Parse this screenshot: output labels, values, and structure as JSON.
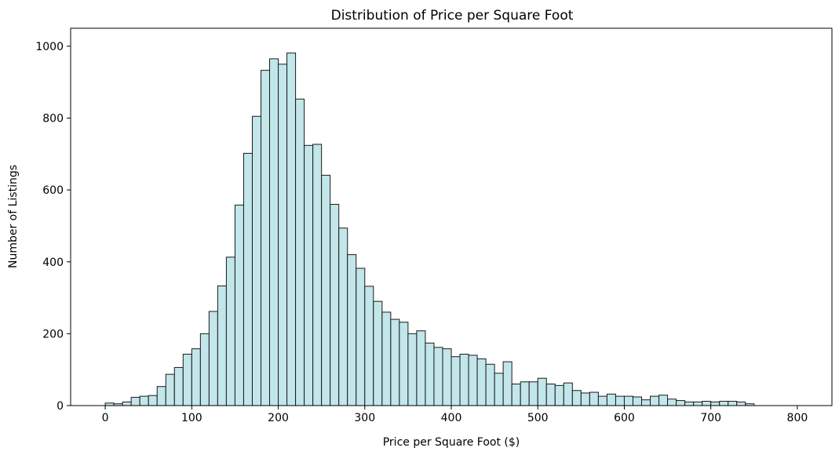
{
  "chart_data": {
    "type": "bar",
    "title": "Distribution of Price per Square Foot",
    "xlabel": "Price per Square Foot ($)",
    "ylabel": "Number of Listings",
    "xlim": [
      -40,
      840
    ],
    "ylim": [
      0,
      1050
    ],
    "xticks": [
      0,
      100,
      200,
      300,
      400,
      500,
      600,
      700,
      800
    ],
    "yticks": [
      0,
      200,
      400,
      600,
      800,
      1000
    ],
    "grid": false,
    "bar_color": "#c2e6ea",
    "edge_color": "#1a1a1a",
    "bins": {
      "start": 0,
      "width": 10,
      "counts": [
        7,
        5,
        10,
        23,
        26,
        28,
        53,
        87,
        106,
        143,
        158,
        200,
        262,
        333,
        413,
        558,
        702,
        805,
        933,
        965,
        950,
        981,
        853,
        724,
        727,
        641,
        560,
        494,
        420,
        382,
        332,
        290,
        260,
        240,
        232,
        200,
        208,
        174,
        162,
        158,
        136,
        143,
        140,
        130,
        115,
        90,
        122,
        60,
        66,
        66,
        76,
        60,
        56,
        63,
        42,
        35,
        37,
        26,
        32,
        26,
        26,
        24,
        16,
        26,
        29,
        18,
        14,
        10,
        10,
        12,
        10,
        12,
        12,
        10,
        5
      ]
    }
  }
}
